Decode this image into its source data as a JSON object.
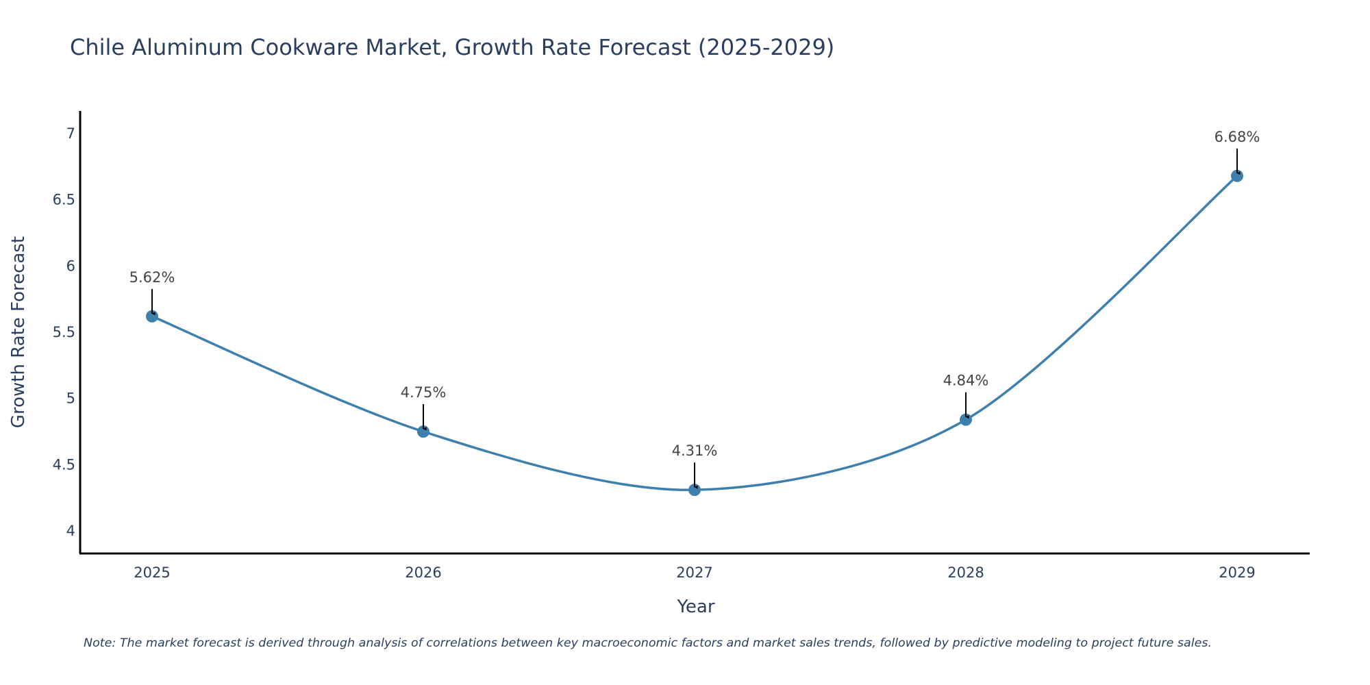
{
  "chart_data": {
    "type": "line",
    "title": "Chile Aluminum Cookware Market, Growth Rate Forecast (2025-2029)",
    "xlabel": "Year",
    "ylabel": "Growth Rate Forecast",
    "categories": [
      "2025",
      "2026",
      "2027",
      "2028",
      "2029"
    ],
    "values": [
      5.62,
      4.75,
      4.31,
      4.84,
      6.68
    ],
    "data_labels": [
      "5.62%",
      "4.75%",
      "4.31%",
      "4.84%",
      "6.68%"
    ],
    "ylim": [
      3.83,
      7.17
    ],
    "yticks": [
      4,
      4.5,
      5,
      5.5,
      6,
      6.5,
      7
    ],
    "ytick_labels": [
      "4",
      "4.5",
      "5",
      "5.5",
      "6",
      "6.5",
      "7"
    ],
    "line_color": "#3d7fad",
    "marker_color": "#3d7fad",
    "grid": false,
    "note": "Note: The market forecast is derived through analysis of correlations between key macroeconomic factors and market sales trends, followed by predictive modeling to project future sales."
  }
}
